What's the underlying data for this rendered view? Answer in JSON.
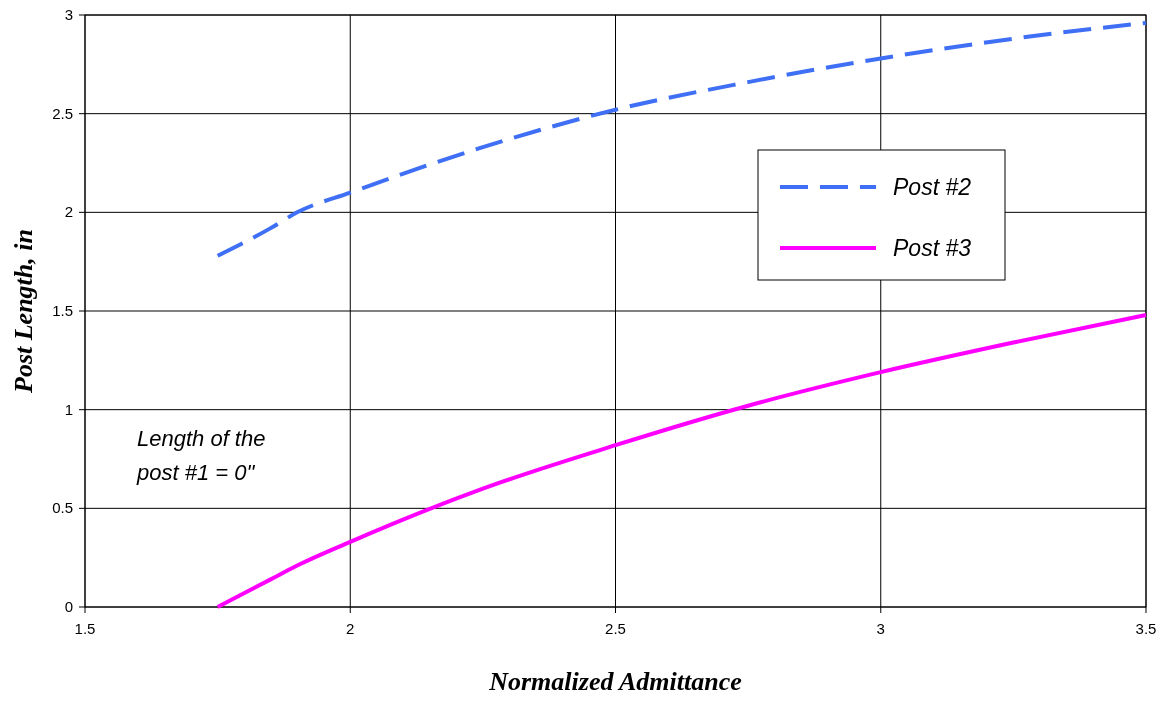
{
  "chart_data": {
    "type": "line",
    "xlabel": "Normalized Admittance",
    "ylabel": "Post Length, in",
    "xlim": [
      1.5,
      3.5
    ],
    "xticks": [
      1.5,
      2,
      2.5,
      3,
      3.5
    ],
    "ylim": [
      0,
      3
    ],
    "yticks": [
      0,
      0.5,
      1,
      1.5,
      2,
      2.5,
      3
    ],
    "grid": true,
    "legend": "top right",
    "x": [
      1.75,
      1.85,
      1.9,
      2,
      2.25,
      2.5,
      2.75,
      3,
      3.25,
      3.5
    ],
    "series": [
      {
        "name": "Post #2",
        "color": "#3f6ff5",
        "line_style": "dashed",
        "values": [
          1.78,
          1.92,
          2.0,
          2.1,
          2.33,
          2.52,
          2.66,
          2.78,
          2.88,
          2.96
        ]
      },
      {
        "name": "Post #3",
        "color": "#ff00ff",
        "line_style": "solid",
        "values": [
          0,
          0.14,
          0.21,
          0.33,
          0.6,
          0.82,
          1.02,
          1.19,
          1.34,
          1.48
        ]
      }
    ],
    "annotations": [
      "Length of the post #1 = 0\""
    ]
  }
}
